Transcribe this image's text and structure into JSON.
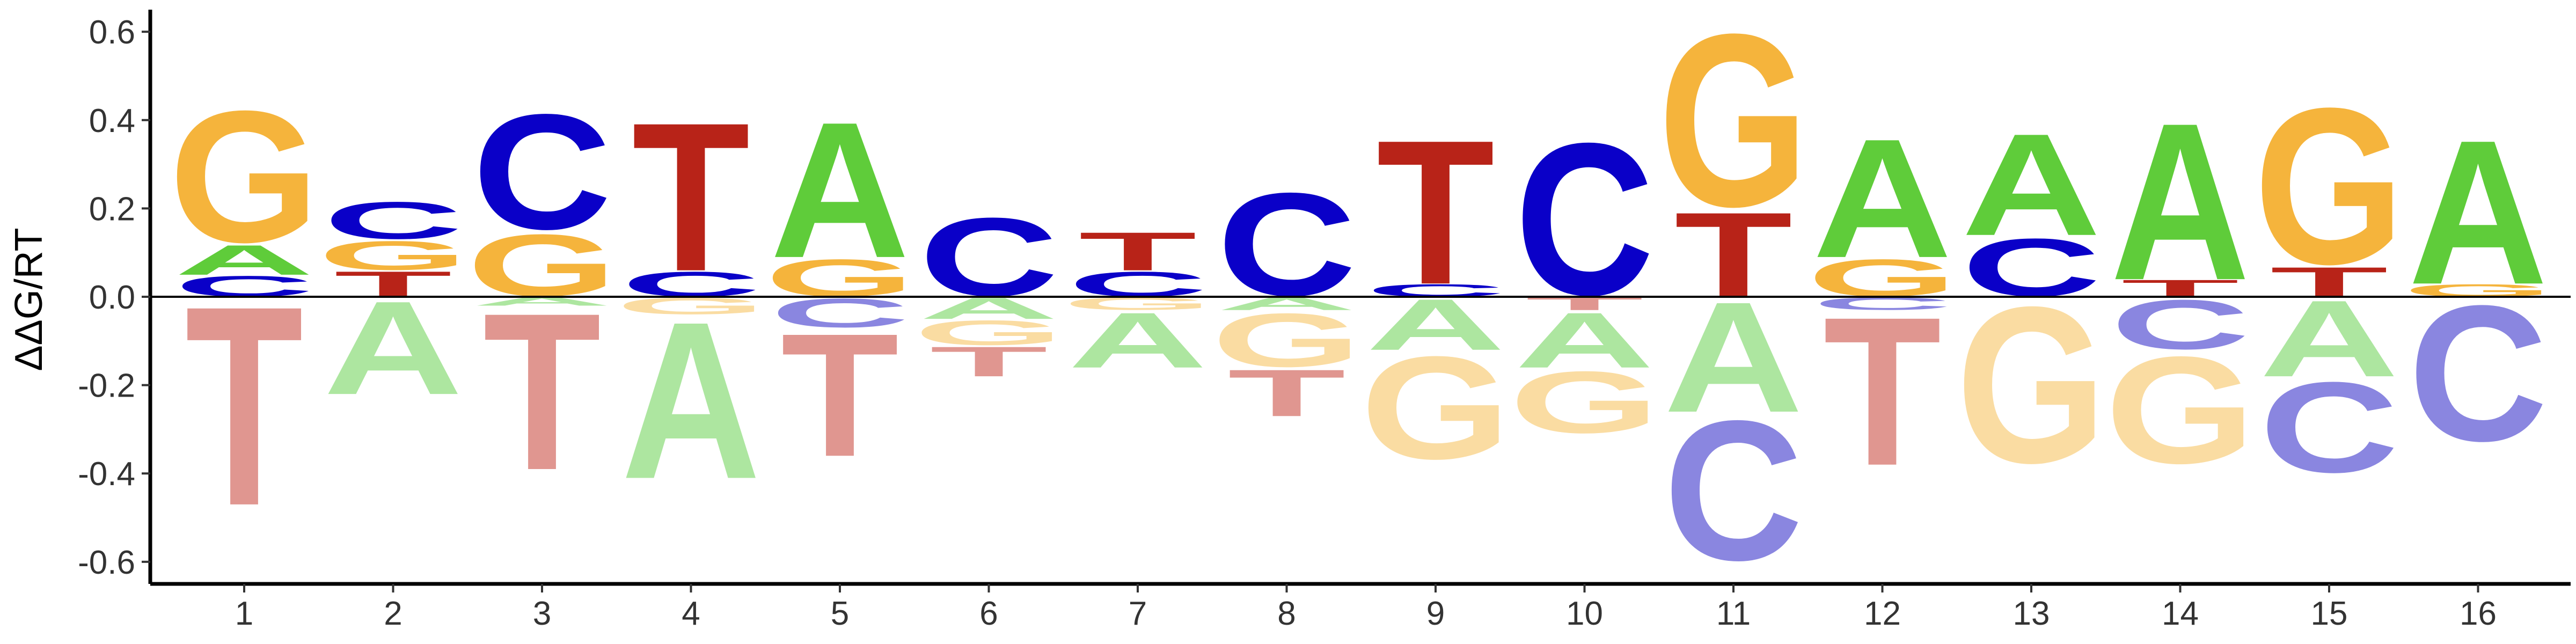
{
  "chart_data": {
    "type": "sequence-logo",
    "ylabel": "ΔΔG/RT",
    "ylim": [
      -0.65,
      0.65
    ],
    "yticks": [
      "0.6",
      "0.4",
      "0.2",
      "0.0",
      "-0.2",
      "-0.4",
      "-0.6"
    ],
    "ytick_values": [
      0.6,
      0.4,
      0.2,
      0.0,
      -0.2,
      -0.4,
      -0.6
    ],
    "positions": [
      "1",
      "2",
      "3",
      "4",
      "5",
      "6",
      "7",
      "8",
      "9",
      "10",
      "11",
      "12",
      "13",
      "14",
      "15",
      "16"
    ],
    "colors": {
      "A": "#5fcc3a",
      "C": "#0a00c8",
      "G": "#f5b43c",
      "T": "#b82318"
    },
    "faded_colors": {
      "A": "#ade6a0",
      "C": "#8a86e0",
      "G": "#fadca2",
      "T": "#e09690"
    },
    "columns": [
      {
        "position": 1,
        "positive": [
          [
            "C",
            0.05
          ],
          [
            "A",
            0.07
          ],
          [
            "G",
            0.32
          ]
        ],
        "negative": [
          [
            "T",
            0.47
          ]
        ]
      },
      {
        "position": 2,
        "positive": [
          [
            "T",
            0.06
          ],
          [
            "G",
            0.07
          ],
          [
            "C",
            0.09
          ]
        ],
        "negative": [
          [
            "A",
            0.22
          ]
        ]
      },
      {
        "position": 3,
        "positive": [
          [
            "G",
            0.15
          ],
          [
            "C",
            0.28
          ]
        ],
        "negative": [
          [
            "A",
            0.02
          ],
          [
            "T",
            0.37
          ]
        ]
      },
      {
        "position": 4,
        "positive": [
          [
            "C",
            0.06
          ],
          [
            "T",
            0.35
          ]
        ],
        "negative": [
          [
            "G",
            0.04
          ],
          [
            "A",
            0.37
          ]
        ]
      },
      {
        "position": 5,
        "positive": [
          [
            "G",
            0.09
          ],
          [
            "A",
            0.32
          ]
        ],
        "negative": [
          [
            "C",
            0.07
          ],
          [
            "T",
            0.29
          ]
        ]
      },
      {
        "position": 6,
        "positive": [
          [
            "C",
            0.19
          ]
        ],
        "negative": [
          [
            "A",
            0.05
          ],
          [
            "G",
            0.06
          ],
          [
            "T",
            0.07
          ]
        ]
      },
      {
        "position": 7,
        "positive": [
          [
            "C",
            0.06
          ],
          [
            "T",
            0.09
          ]
        ],
        "negative": [
          [
            "G",
            0.03
          ],
          [
            "A",
            0.13
          ]
        ]
      },
      {
        "position": 8,
        "positive": [
          [
            "C",
            0.25
          ]
        ],
        "negative": [
          [
            "A",
            0.03
          ],
          [
            "G",
            0.13
          ],
          [
            "T",
            0.11
          ]
        ]
      },
      {
        "position": 9,
        "positive": [
          [
            "C",
            0.03
          ],
          [
            "T",
            0.34
          ]
        ],
        "negative": [
          [
            "A",
            0.12
          ],
          [
            "G",
            0.25
          ]
        ]
      },
      {
        "position": 10,
        "positive": [
          [
            "C",
            0.37
          ]
        ],
        "negative": [
          [
            "T",
            0.03
          ],
          [
            "A",
            0.13
          ],
          [
            "G",
            0.15
          ]
        ]
      },
      {
        "position": 11,
        "positive": [
          [
            "T",
            0.2
          ],
          [
            "G",
            0.42
          ]
        ],
        "negative": [
          [
            "A",
            0.26
          ],
          [
            "C",
            0.34
          ]
        ]
      },
      {
        "position": 12,
        "positive": [
          [
            "G",
            0.09
          ],
          [
            "A",
            0.28
          ]
        ],
        "negative": [
          [
            "C",
            0.03
          ],
          [
            "T",
            0.35
          ]
        ]
      },
      {
        "position": 13,
        "positive": [
          [
            "C",
            0.14
          ],
          [
            "A",
            0.24
          ]
        ],
        "negative": [
          [
            "G",
            0.38
          ]
        ]
      },
      {
        "position": 14,
        "positive": [
          [
            "T",
            0.04
          ],
          [
            "A",
            0.37
          ]
        ],
        "negative": [
          [
            "C",
            0.12
          ],
          [
            "G",
            0.26
          ]
        ]
      },
      {
        "position": 15,
        "positive": [
          [
            "T",
            0.07
          ],
          [
            "G",
            0.38
          ]
        ],
        "negative": [
          [
            "A",
            0.18
          ],
          [
            "C",
            0.22
          ]
        ]
      },
      {
        "position": 16,
        "positive": [
          [
            "G",
            0.03
          ],
          [
            "A",
            0.34
          ]
        ],
        "negative": [
          [
            "C",
            0.33
          ]
        ]
      }
    ]
  }
}
